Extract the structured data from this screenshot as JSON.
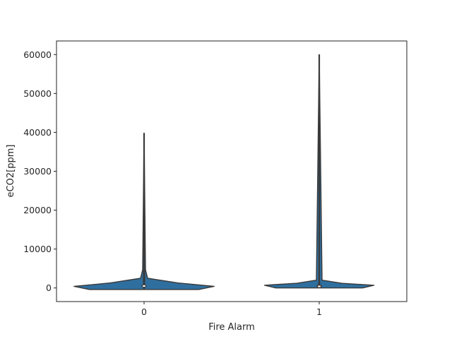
{
  "chart_data": {
    "type": "violin",
    "title": "",
    "xlabel": "Fire Alarm",
    "ylabel": "eCO2[ppm]",
    "categories": [
      "0",
      "1"
    ],
    "ylim": [
      -3500,
      63500
    ],
    "yticks": [
      0,
      10000,
      20000,
      30000,
      40000,
      50000,
      60000
    ],
    "ytick_labels": [
      "0",
      "10000",
      "20000",
      "30000",
      "40000",
      "50000",
      "60000"
    ],
    "grid": false,
    "legend": "none",
    "fill_color": "#2f6f9f",
    "edge_color": "#3a3a3a",
    "violins": [
      {
        "category": "0",
        "min": -400,
        "max": 39800,
        "q1": 400,
        "median": 500,
        "q3": 700,
        "whisker_high": 4700,
        "density_profile": [
          {
            "y": -400,
            "w": 0.78
          },
          {
            "y": 400,
            "w": 1.0
          },
          {
            "y": 1300,
            "w": 0.48
          },
          {
            "y": 2500,
            "w": 0.05
          },
          {
            "y": 4700,
            "w": 0.02
          }
        ]
      },
      {
        "category": "1",
        "min": 0,
        "max": 60000,
        "q1": 0,
        "median": 400,
        "q3": 800,
        "whisker_high": 1500,
        "density_profile": [
          {
            "y": 0,
            "w": 0.62
          },
          {
            "y": 700,
            "w": 0.78
          },
          {
            "y": 1200,
            "w": 0.32
          },
          {
            "y": 2000,
            "w": 0.04
          }
        ]
      }
    ]
  }
}
